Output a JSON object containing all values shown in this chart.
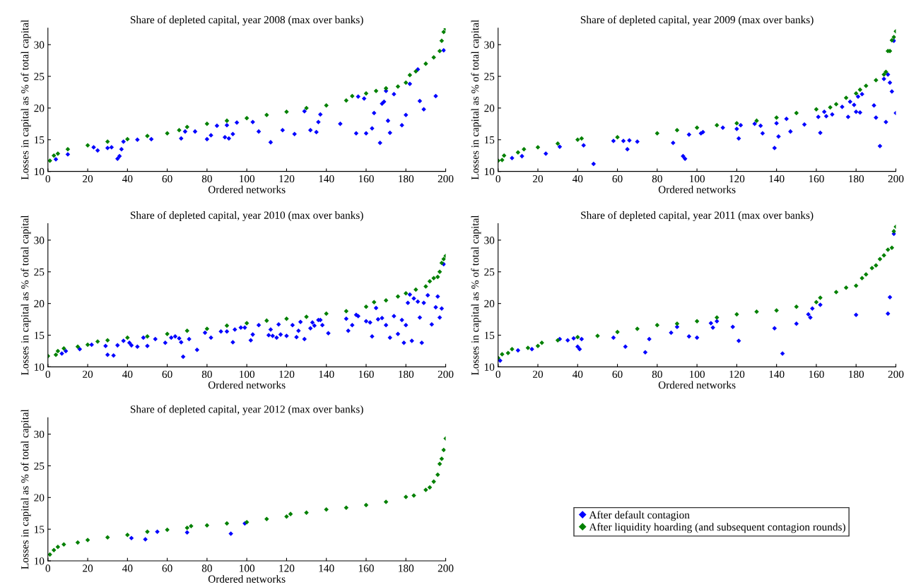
{
  "chart_data": [
    {
      "type": "scatter",
      "title": "Share of depleted capital, year 2008 (max over banks)",
      "xlabel": "Ordered networks",
      "ylabel": "Losses in capital as % of total capital",
      "xlim": [
        0,
        200
      ],
      "ylim": [
        10,
        32.6
      ],
      "xticks": [
        0,
        20,
        40,
        60,
        80,
        100,
        120,
        140,
        160,
        180,
        200
      ],
      "yticks": [
        10,
        15,
        20,
        25,
        30
      ],
      "marker": "diamond",
      "grid": false,
      "legend": "bottom right",
      "series": [
        {
          "name": "After default contagion",
          "color": "#0000ff",
          "x": [
            4,
            10,
            23,
            25,
            30,
            32,
            35,
            36,
            37,
            38,
            45,
            52,
            67,
            69,
            74,
            80,
            82,
            85,
            89,
            90,
            91,
            93,
            95,
            100,
            103,
            106,
            112,
            118,
            124,
            129,
            132,
            135,
            136,
            137,
            147,
            155,
            156,
            159,
            160,
            163,
            164,
            167,
            168,
            169,
            170,
            171,
            172,
            174,
            178,
            180,
            182,
            186,
            187,
            189,
            195,
            199
          ],
          "values": [
            11.9,
            12.7,
            13.8,
            13.3,
            13.7,
            13.8,
            12.0,
            12.4,
            13.5,
            14.7,
            15.0,
            15.1,
            15.2,
            16.3,
            16.3,
            15.1,
            15.7,
            17.2,
            15.4,
            17.3,
            15.2,
            15.9,
            17.7,
            null,
            17.8,
            16.3,
            14.6,
            16.5,
            15.9,
            19.5,
            16.5,
            16.2,
            17.8,
            19.0,
            17.5,
            16.0,
            21.8,
            21.5,
            16.0,
            16.8,
            19.2,
            14.5,
            20.7,
            21.0,
            22.7,
            18.0,
            16.1,
            22.2,
            17.3,
            18.9,
            23.8,
            26.1,
            21.1,
            19.8,
            21.9,
            29.1
          ]
        },
        {
          "name": "After liquidity hoarding (and subsequent contagion rounds)",
          "color": "#008000",
          "x": [
            1,
            3,
            5,
            10,
            20,
            30,
            40,
            50,
            60,
            66,
            70,
            80,
            90,
            100,
            110,
            120,
            130,
            140,
            150,
            153,
            160,
            165,
            170,
            176,
            180,
            182,
            185,
            190,
            194,
            197,
            198,
            199,
            200
          ],
          "values": [
            11.7,
            12.5,
            12.8,
            13.5,
            14.1,
            14.7,
            15.1,
            15.6,
            16.0,
            16.5,
            17.0,
            17.5,
            18.0,
            18.4,
            18.9,
            19.4,
            20.0,
            20.4,
            21.2,
            21.9,
            22.3,
            22.7,
            23.1,
            23.4,
            24.0,
            25.2,
            25.8,
            27.0,
            28.0,
            29.0,
            30.6,
            32.0,
            32.5
          ]
        }
      ]
    },
    {
      "type": "scatter",
      "title": "Share of depleted capital, year 2009 (max over banks)",
      "xlabel": "Ordered networks",
      "ylabel": "Losses in capital as % of total capital",
      "xlim": [
        0,
        200
      ],
      "ylim": [
        10,
        32.6
      ],
      "xticks": [
        0,
        20,
        40,
        60,
        80,
        100,
        120,
        140,
        160,
        180,
        200
      ],
      "yticks": [
        10,
        15,
        20,
        25,
        30
      ],
      "marker": "diamond",
      "grid": false,
      "series": [
        {
          "color": "#0000ff",
          "x": [
            7,
            12,
            24,
            31,
            43,
            48,
            58,
            63,
            65,
            66,
            70,
            88,
            93,
            94,
            96,
            102,
            103,
            113,
            120,
            121,
            122,
            129,
            132,
            133,
            139,
            140,
            141,
            145,
            147,
            154,
            161,
            162,
            164,
            165,
            168,
            173,
            176,
            177,
            179,
            180,
            181,
            182,
            183,
            189,
            190,
            192,
            194,
            195,
            196,
            197,
            198,
            199,
            200
          ],
          "values": [
            12.1,
            12.4,
            12.8,
            13.9,
            14.1,
            11.2,
            14.8,
            14.8,
            13.5,
            14.9,
            14.7,
            14.5,
            12.4,
            12.0,
            15.8,
            16.0,
            16.2,
            16.9,
            16.7,
            15.2,
            17.3,
            17.5,
            17.2,
            16.0,
            13.7,
            17.6,
            15.5,
            18.3,
            16.3,
            17.4,
            18.6,
            16.1,
            19.4,
            18.7,
            19.0,
            20.2,
            18.6,
            21.0,
            20.5,
            19.4,
            21.8,
            19.3,
            22.2,
            20.4,
            18.5,
            14.0,
            24.6,
            17.8,
            25.3,
            24.0,
            22.6,
            30.6,
            19.2
          ]
        },
        {
          "color": "#008000",
          "x": [
            0,
            2,
            3,
            10,
            13,
            20,
            30,
            40,
            42,
            60,
            80,
            90,
            100,
            110,
            120,
            130,
            140,
            150,
            160,
            167,
            170,
            175,
            180,
            182,
            185,
            190,
            194,
            195,
            196,
            197,
            198,
            199,
            200
          ],
          "values": [
            11.7,
            11.8,
            12.5,
            13.0,
            13.5,
            13.8,
            14.4,
            15.0,
            15.2,
            15.4,
            16.0,
            16.5,
            16.9,
            17.3,
            17.6,
            18.0,
            18.5,
            19.2,
            19.8,
            20.1,
            20.6,
            21.6,
            22.3,
            22.9,
            23.5,
            24.4,
            25.3,
            25.7,
            29.0,
            29.0,
            30.7,
            31.2,
            32.1
          ]
        }
      ]
    },
    {
      "type": "scatter",
      "title": "Share of depleted capital, year 2010 (max over banks)",
      "xlabel": "Ordered networks",
      "ylabel": "Losses in capital as % of total capital",
      "xlim": [
        0,
        200
      ],
      "ylim": [
        10,
        32.6
      ],
      "xticks": [
        0,
        20,
        40,
        60,
        80,
        100,
        120,
        140,
        160,
        180,
        200
      ],
      "yticks": [
        10,
        15,
        20,
        25,
        30
      ],
      "marker": "diamond",
      "grid": false,
      "series": [
        {
          "color": "#0000ff",
          "x": [
            7,
            9,
            16,
            22,
            29,
            30,
            33,
            35,
            38,
            41,
            42,
            45,
            48,
            50,
            54,
            59,
            62,
            64,
            66,
            67,
            68,
            71,
            75,
            79,
            82,
            87,
            90,
            93,
            94,
            97,
            99,
            102,
            103,
            106,
            111,
            112,
            113,
            115,
            116,
            117,
            120,
            123,
            125,
            126,
            127,
            129,
            132,
            133,
            134,
            136,
            137,
            138,
            141,
            150,
            151,
            153,
            155,
            156,
            160,
            162,
            163,
            165,
            166,
            168,
            170,
            172,
            174,
            176,
            178,
            179,
            180,
            181,
            182,
            183,
            184,
            186,
            187,
            188,
            189,
            191,
            193,
            195,
            196,
            197,
            198,
            199
          ],
          "values": [
            12.1,
            12.5,
            12.8,
            13.5,
            13.3,
            11.9,
            11.8,
            13.4,
            14.1,
            13.8,
            13.4,
            13.2,
            14.6,
            13.3,
            14.4,
            13.8,
            14.6,
            14.8,
            14.5,
            13.9,
            11.6,
            14.4,
            12.7,
            15.4,
            14.6,
            15.6,
            15.6,
            13.9,
            15.9,
            16.2,
            16.2,
            14.2,
            15.1,
            16.6,
            15.0,
            15.9,
            14.9,
            14.6,
            16.7,
            15.1,
            14.9,
            16.6,
            14.7,
            15.7,
            17.1,
            14.4,
            16.1,
            17.0,
            16.5,
            17.4,
            17.4,
            16.6,
            15.3,
            17.6,
            15.7,
            16.6,
            18.2,
            18.0,
            17.2,
            17.0,
            14.8,
            19.3,
            17.5,
            17.7,
            16.6,
            14.6,
            18.0,
            15.2,
            17.4,
            13.8,
            16.6,
            20.1,
            21.4,
            14.1,
            20.8,
            20.3,
            17.8,
            13.8,
            20.1,
            21.3,
            16.7,
            19.4,
            21.1,
            17.8,
            19.2,
            26.2
          ]
        },
        {
          "color": "#008000",
          "x": [
            0,
            4,
            5,
            8,
            15,
            20,
            25,
            30,
            40,
            50,
            60,
            70,
            80,
            90,
            100,
            110,
            120,
            130,
            140,
            150,
            160,
            164,
            170,
            176,
            180,
            185,
            190,
            192,
            194,
            196,
            197,
            198,
            199,
            200
          ],
          "values": [
            11.7,
            11.9,
            12.5,
            12.9,
            13.2,
            13.5,
            14.0,
            14.2,
            14.6,
            14.8,
            15.2,
            15.7,
            16.0,
            16.5,
            16.9,
            17.3,
            17.6,
            17.9,
            18.4,
            18.8,
            19.5,
            20.2,
            20.5,
            21.1,
            21.6,
            22.2,
            22.7,
            23.5,
            24.0,
            24.2,
            25.0,
            26.4,
            27.0,
            27.5
          ]
        }
      ]
    },
    {
      "type": "scatter",
      "title": "Share of depleted capital, year 2011 (max over banks)",
      "xlabel": "Ordered networks",
      "ylabel": "Losses in capital as % of total capital",
      "xlim": [
        0,
        200
      ],
      "ylim": [
        10,
        32.6
      ],
      "xticks": [
        0,
        20,
        40,
        60,
        80,
        100,
        120,
        140,
        160,
        180,
        200
      ],
      "yticks": [
        10,
        15,
        20,
        25,
        30
      ],
      "marker": "diamond",
      "grid": false,
      "series": [
        {
          "color": "#0000ff",
          "x": [
            1,
            10,
            15,
            17,
            31,
            35,
            38,
            40,
            41,
            42,
            58,
            64,
            74,
            76,
            87,
            90,
            96,
            100,
            107,
            108,
            110,
            118,
            121,
            139,
            143,
            150,
            156,
            157,
            158,
            162,
            180,
            196,
            197,
            199
          ],
          "values": [
            11.0,
            12.6,
            null,
            12.8,
            14.4,
            14.2,
            14.5,
            13.2,
            12.8,
            14.4,
            14.6,
            13.2,
            12.3,
            14.4,
            15.4,
            16.3,
            14.8,
            14.6,
            16.9,
            16.2,
            17.2,
            16.3,
            14.1,
            16.1,
            12.1,
            16.8,
            18.3,
            17.8,
            19.2,
            19.8,
            18.2,
            18.4,
            21.0,
            31.0
          ]
        },
        {
          "color": "#008000",
          "x": [
            0,
            2,
            5,
            7,
            15,
            20,
            22,
            30,
            40,
            50,
            60,
            70,
            80,
            90,
            100,
            110,
            120,
            130,
            140,
            150,
            160,
            162,
            170,
            175,
            180,
            183,
            185,
            188,
            190,
            192,
            194,
            196,
            198,
            199,
            200
          ],
          "values": [
            11.4,
            12.0,
            12.2,
            12.8,
            13.0,
            13.3,
            13.8,
            14.2,
            14.7,
            14.9,
            15.5,
            16.0,
            16.6,
            16.8,
            17.2,
            17.8,
            18.3,
            18.7,
            18.9,
            19.5,
            20.2,
            20.9,
            21.8,
            22.5,
            22.8,
            24.0,
            24.6,
            25.6,
            26.0,
            27.0,
            27.6,
            28.5,
            28.8,
            31.4,
            32.1
          ]
        }
      ]
    },
    {
      "type": "scatter",
      "title": "Share of depleted capital, year 2012 (max over banks)",
      "xlabel": "Ordered networks",
      "ylabel": "Losses in capital as % of total capital",
      "xlim": [
        0,
        200
      ],
      "ylim": [
        10,
        32.6
      ],
      "xticks": [
        0,
        20,
        40,
        60,
        80,
        100,
        120,
        140,
        160,
        180,
        200
      ],
      "yticks": [
        10,
        15,
        20,
        25,
        30
      ],
      "marker": "diamond",
      "grid": false,
      "series": [
        {
          "color": "#0000ff",
          "x": [
            42,
            49,
            55,
            70,
            92,
            99
          ],
          "values": [
            13.6,
            13.4,
            14.6,
            14.5,
            14.3,
            15.9
          ]
        },
        {
          "color": "#008000",
          "x": [
            1,
            3,
            5,
            8,
            15,
            20,
            30,
            40,
            50,
            60,
            70,
            72,
            80,
            90,
            100,
            110,
            120,
            122,
            130,
            140,
            150,
            160,
            170,
            180,
            184,
            190,
            192,
            194,
            196,
            197,
            198,
            199,
            200
          ],
          "values": [
            11.0,
            11.7,
            12.2,
            12.6,
            12.9,
            13.3,
            13.7,
            14.1,
            14.6,
            14.9,
            15.2,
            15.5,
            15.6,
            15.9,
            16.1,
            16.6,
            17.0,
            17.4,
            17.6,
            18.1,
            18.4,
            18.8,
            19.3,
            20.1,
            20.3,
            21.2,
            21.6,
            22.5,
            23.6,
            25.3,
            26.1,
            27.5,
            29.3
          ]
        }
      ]
    }
  ]
}
